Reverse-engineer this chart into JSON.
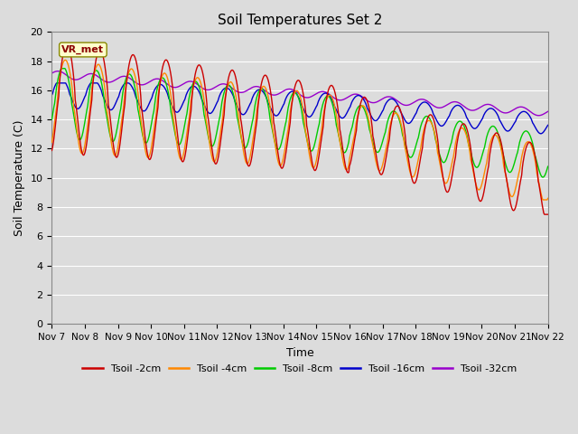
{
  "title": "Soil Temperatures Set 2",
  "xlabel": "Time",
  "ylabel": "Soil Temperature (C)",
  "ylim": [
    0,
    20
  ],
  "yticks": [
    0,
    2,
    4,
    6,
    8,
    10,
    12,
    14,
    16,
    18,
    20
  ],
  "colors": {
    "tsoil_2cm": "#cc0000",
    "tsoil_4cm": "#ff8800",
    "tsoil_8cm": "#00cc00",
    "tsoil_16cm": "#0000cc",
    "tsoil_32cm": "#9900cc"
  },
  "legend_labels": [
    "Tsoil -2cm",
    "Tsoil -4cm",
    "Tsoil -8cm",
    "Tsoil -16cm",
    "Tsoil -32cm"
  ],
  "station_label": "VR_met",
  "bg_color": "#dcdcdc",
  "plot_bg_color": "#dcdcdc",
  "title_fontsize": 11,
  "label_fontsize": 9,
  "tick_fontsize": 8,
  "xtick_labels": [
    "Nov 7",
    "Nov 8",
    "Nov 9",
    "Nov 10",
    "Nov 11",
    "Nov 12",
    "Nov 13",
    "Nov 14",
    "Nov 15",
    "Nov 16",
    "Nov 17",
    "Nov 18",
    "Nov 19",
    "Nov 20",
    "Nov 21",
    "Nov 22"
  ]
}
